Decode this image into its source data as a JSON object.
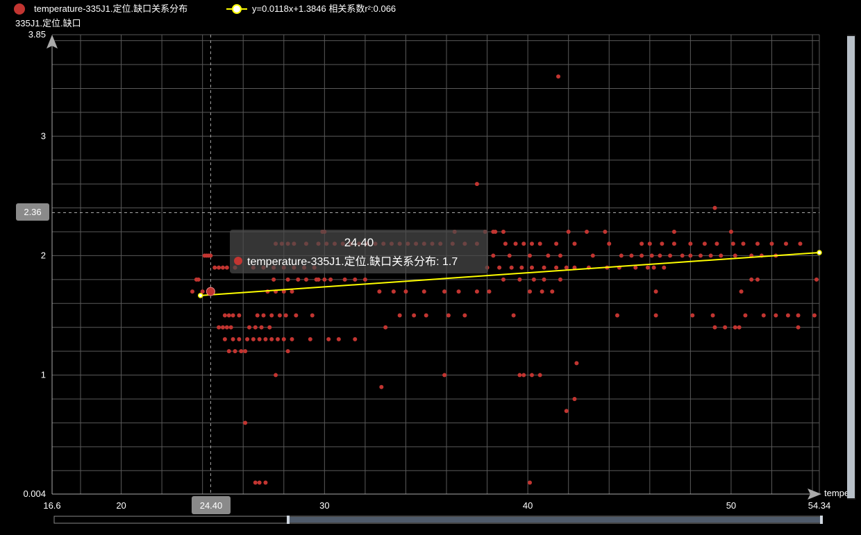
{
  "legend": {
    "series_label": "temperature-335J1.定位.缺口关系分布",
    "fit_label": "y=0.0118x+1.3846  相关系数r²:0.066"
  },
  "axes": {
    "y_name": "335J1.定位.缺口",
    "x_name_visible": "tempe"
  },
  "crosshair": {
    "x_label": "24.40",
    "y_label": "2.36"
  },
  "tooltip": {
    "title": "24.40",
    "series": "temperature-335J1.定位.缺口关系分布",
    "value": "1.7"
  },
  "colors": {
    "background": "#000000",
    "points": "#c23531",
    "fit_line": "#ffff00",
    "grid": "#5a5a5a"
  },
  "chart_data": {
    "type": "scatter",
    "xlim": [
      16.6,
      54.34
    ],
    "ylim": [
      0.004,
      3.85
    ],
    "x_ticks": [
      "16.6",
      "20",
      "24.40",
      "30",
      "40",
      "50",
      "54.34"
    ],
    "y_ticks": [
      "0.004",
      "1",
      "2",
      "3",
      "3.85"
    ],
    "grid": true,
    "legend_position": "top-left",
    "fit": {
      "slope": 0.0118,
      "intercept": 1.3846,
      "r2": 0.066,
      "x_range": [
        23.9,
        54.34
      ]
    },
    "highlight": {
      "x": 24.4,
      "y": 1.7
    },
    "points": [
      [
        24.4,
        1.7
      ],
      [
        23.7,
        1.8
      ],
      [
        23.8,
        1.8
      ],
      [
        24.1,
        2.0
      ],
      [
        24.2,
        2.0
      ],
      [
        24.3,
        2.0
      ],
      [
        24.4,
        2.0
      ],
      [
        24.6,
        1.9
      ],
      [
        24.8,
        1.9
      ],
      [
        25.0,
        1.9
      ],
      [
        25.2,
        1.9
      ],
      [
        25.6,
        1.9
      ],
      [
        23.5,
        1.7
      ],
      [
        24.0,
        1.7
      ],
      [
        25.1,
        1.5
      ],
      [
        25.3,
        1.5
      ],
      [
        25.5,
        1.5
      ],
      [
        25.8,
        1.5
      ],
      [
        24.8,
        1.4
      ],
      [
        25.0,
        1.4
      ],
      [
        25.2,
        1.4
      ],
      [
        25.4,
        1.4
      ],
      [
        25.1,
        1.3
      ],
      [
        25.5,
        1.3
      ],
      [
        25.8,
        1.3
      ],
      [
        25.3,
        1.2
      ],
      [
        25.6,
        1.2
      ],
      [
        25.9,
        1.2
      ],
      [
        26.1,
        1.2
      ],
      [
        26.2,
        1.3
      ],
      [
        26.5,
        1.3
      ],
      [
        26.8,
        1.3
      ],
      [
        27.1,
        1.3
      ],
      [
        27.4,
        1.3
      ],
      [
        27.7,
        1.3
      ],
      [
        26.3,
        1.4
      ],
      [
        26.6,
        1.4
      ],
      [
        26.9,
        1.4
      ],
      [
        27.3,
        1.4
      ],
      [
        26.7,
        1.5
      ],
      [
        27.0,
        1.5
      ],
      [
        27.4,
        1.5
      ],
      [
        27.8,
        1.5
      ],
      [
        28.1,
        1.5
      ],
      [
        28.4,
        1.3
      ],
      [
        28.0,
        1.3
      ],
      [
        27.2,
        1.7
      ],
      [
        27.6,
        1.7
      ],
      [
        28.0,
        1.7
      ],
      [
        28.4,
        1.7
      ],
      [
        27.5,
        1.8
      ],
      [
        28.2,
        1.8
      ],
      [
        28.7,
        1.8
      ],
      [
        29.1,
        1.8
      ],
      [
        29.6,
        1.8
      ],
      [
        26.5,
        1.9
      ],
      [
        27.0,
        1.9
      ],
      [
        27.5,
        1.9
      ],
      [
        28.0,
        1.9
      ],
      [
        28.5,
        1.9
      ],
      [
        29.0,
        1.9
      ],
      [
        29.5,
        1.9
      ],
      [
        27.6,
        2.1
      ],
      [
        27.9,
        2.1
      ],
      [
        28.2,
        2.1
      ],
      [
        28.5,
        2.1
      ],
      [
        29.1,
        2.1
      ],
      [
        29.7,
        2.1
      ],
      [
        30.1,
        2.1
      ],
      [
        30.5,
        2.1
      ],
      [
        30.9,
        2.1
      ],
      [
        31.3,
        2.1
      ],
      [
        31.7,
        2.1
      ],
      [
        32.1,
        2.1
      ],
      [
        32.5,
        2.1
      ],
      [
        32.9,
        2.1
      ],
      [
        33.3,
        2.1
      ],
      [
        33.7,
        2.1
      ],
      [
        34.1,
        2.1
      ],
      [
        34.5,
        2.1
      ],
      [
        34.9,
        2.1
      ],
      [
        35.3,
        2.1
      ],
      [
        35.7,
        2.1
      ],
      [
        36.3,
        2.1
      ],
      [
        36.9,
        2.1
      ],
      [
        37.5,
        2.1
      ],
      [
        29.9,
        2.2
      ],
      [
        30.0,
        2.2
      ],
      [
        36.4,
        2.2
      ],
      [
        37.9,
        2.2
      ],
      [
        38.4,
        2.2
      ],
      [
        29.7,
        1.8
      ],
      [
        30.0,
        1.8
      ],
      [
        30.3,
        1.8
      ],
      [
        31.0,
        1.8
      ],
      [
        31.5,
        1.8
      ],
      [
        32.0,
        1.8
      ],
      [
        32.7,
        1.7
      ],
      [
        33.4,
        1.7
      ],
      [
        34.0,
        1.7
      ],
      [
        34.9,
        1.7
      ],
      [
        35.9,
        1.7
      ],
      [
        36.6,
        1.7
      ],
      [
        37.5,
        1.7
      ],
      [
        38.1,
        1.7
      ],
      [
        33.7,
        1.5
      ],
      [
        34.4,
        1.5
      ],
      [
        35.0,
        1.5
      ],
      [
        36.1,
        1.5
      ],
      [
        36.9,
        1.5
      ],
      [
        28.6,
        1.5
      ],
      [
        29.4,
        1.5
      ],
      [
        29.3,
        1.3
      ],
      [
        30.2,
        1.3
      ],
      [
        30.7,
        1.3
      ],
      [
        31.5,
        1.3
      ],
      [
        28.2,
        1.2
      ],
      [
        27.6,
        1.0
      ],
      [
        33.0,
        1.4
      ],
      [
        32.8,
        0.9
      ],
      [
        35.9,
        1.0
      ],
      [
        37.5,
        2.6
      ],
      [
        26.1,
        0.6
      ],
      [
        26.6,
        0.1
      ],
      [
        26.8,
        0.1
      ],
      [
        27.1,
        0.1
      ],
      [
        38.0,
        1.9
      ],
      [
        38.6,
        1.9
      ],
      [
        39.2,
        1.9
      ],
      [
        39.7,
        1.9
      ],
      [
        40.2,
        1.9
      ],
      [
        40.8,
        1.9
      ],
      [
        41.4,
        1.9
      ],
      [
        41.9,
        1.9
      ],
      [
        42.3,
        1.9
      ],
      [
        43.0,
        1.9
      ],
      [
        43.9,
        1.9
      ],
      [
        44.5,
        1.9
      ],
      [
        45.3,
        1.9
      ],
      [
        45.9,
        1.9
      ],
      [
        46.2,
        1.9
      ],
      [
        46.7,
        1.9
      ],
      [
        38.9,
        2.1
      ],
      [
        39.4,
        2.1
      ],
      [
        39.8,
        2.1
      ],
      [
        40.2,
        2.1
      ],
      [
        40.6,
        2.1
      ],
      [
        41.4,
        2.1
      ],
      [
        42.3,
        2.1
      ],
      [
        44.0,
        2.1
      ],
      [
        45.6,
        2.1
      ],
      [
        46.0,
        2.1
      ],
      [
        46.6,
        2.1
      ],
      [
        47.2,
        2.1
      ],
      [
        48.0,
        2.1
      ],
      [
        48.7,
        2.1
      ],
      [
        49.3,
        2.1
      ],
      [
        50.1,
        2.1
      ],
      [
        50.6,
        2.1
      ],
      [
        51.3,
        2.1
      ],
      [
        52.0,
        2.1
      ],
      [
        52.7,
        2.1
      ],
      [
        53.4,
        2.1
      ],
      [
        38.3,
        2.2
      ],
      [
        38.8,
        2.2
      ],
      [
        42.0,
        2.2
      ],
      [
        42.9,
        2.2
      ],
      [
        43.8,
        2.2
      ],
      [
        47.2,
        2.2
      ],
      [
        50.0,
        2.2
      ],
      [
        38.3,
        2.0
      ],
      [
        39.1,
        2.0
      ],
      [
        40.1,
        2.0
      ],
      [
        41.0,
        2.0
      ],
      [
        41.6,
        2.0
      ],
      [
        43.2,
        2.0
      ],
      [
        44.6,
        2.0
      ],
      [
        45.1,
        2.0
      ],
      [
        45.6,
        2.0
      ],
      [
        46.1,
        2.0
      ],
      [
        46.5,
        2.0
      ],
      [
        47.0,
        2.0
      ],
      [
        47.6,
        2.0
      ],
      [
        48.0,
        2.0
      ],
      [
        48.5,
        2.0
      ],
      [
        49.0,
        2.0
      ],
      [
        49.5,
        2.0
      ],
      [
        50.2,
        2.0
      ],
      [
        51.0,
        2.0
      ],
      [
        51.5,
        2.0
      ],
      [
        52.2,
        2.0
      ],
      [
        38.8,
        1.8
      ],
      [
        39.6,
        1.8
      ],
      [
        40.3,
        1.8
      ],
      [
        40.8,
        1.8
      ],
      [
        41.6,
        1.8
      ],
      [
        40.1,
        1.7
      ],
      [
        40.7,
        1.7
      ],
      [
        41.2,
        1.7
      ],
      [
        46.3,
        1.7
      ],
      [
        50.5,
        1.7
      ],
      [
        51.0,
        1.8
      ],
      [
        51.3,
        1.8
      ],
      [
        39.3,
        1.5
      ],
      [
        44.4,
        1.5
      ],
      [
        46.3,
        1.5
      ],
      [
        48.1,
        1.5
      ],
      [
        49.1,
        1.5
      ],
      [
        50.7,
        1.5
      ],
      [
        51.6,
        1.5
      ],
      [
        52.2,
        1.5
      ],
      [
        52.8,
        1.5
      ],
      [
        53.3,
        1.5
      ],
      [
        54.1,
        1.5
      ],
      [
        49.2,
        1.4
      ],
      [
        49.7,
        1.4
      ],
      [
        50.4,
        1.4
      ],
      [
        53.3,
        1.4
      ],
      [
        54.2,
        1.8
      ],
      [
        50.2,
        1.4
      ],
      [
        39.6,
        1.0
      ],
      [
        39.8,
        1.0
      ],
      [
        40.2,
        1.0
      ],
      [
        40.6,
        1.0
      ],
      [
        41.5,
        3.5
      ],
      [
        42.4,
        1.1
      ],
      [
        42.3,
        0.8
      ],
      [
        41.9,
        0.7
      ],
      [
        40.1,
        0.1
      ],
      [
        49.2,
        2.4
      ]
    ]
  }
}
